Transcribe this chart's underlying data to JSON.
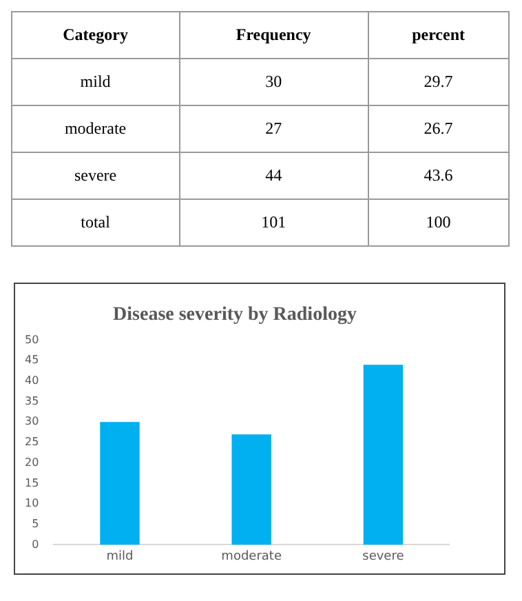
{
  "chart_data": [
    {
      "type": "other",
      "xlabel": "Category",
      "categories": [
        "mild",
        "moderate",
        "severe",
        "total"
      ],
      "series": [
        {
          "name": "Frequency",
          "values": [
            30,
            27,
            44,
            101
          ]
        },
        {
          "name": "percent",
          "values": [
            29.7,
            26.7,
            43.6,
            100
          ]
        }
      ],
      "data_labels": true
    },
    {
      "type": "bar",
      "title": "Disease severity by Radiology",
      "categories": [
        "mild",
        "moderate",
        "severe"
      ],
      "values": [
        30,
        27,
        44
      ],
      "color": "#00b0f0",
      "ylim": [
        0,
        50
      ],
      "yticks": [
        0,
        5,
        10,
        15,
        20,
        25,
        30,
        35,
        40,
        45,
        50
      ],
      "grid": false,
      "legend": false
    }
  ]
}
